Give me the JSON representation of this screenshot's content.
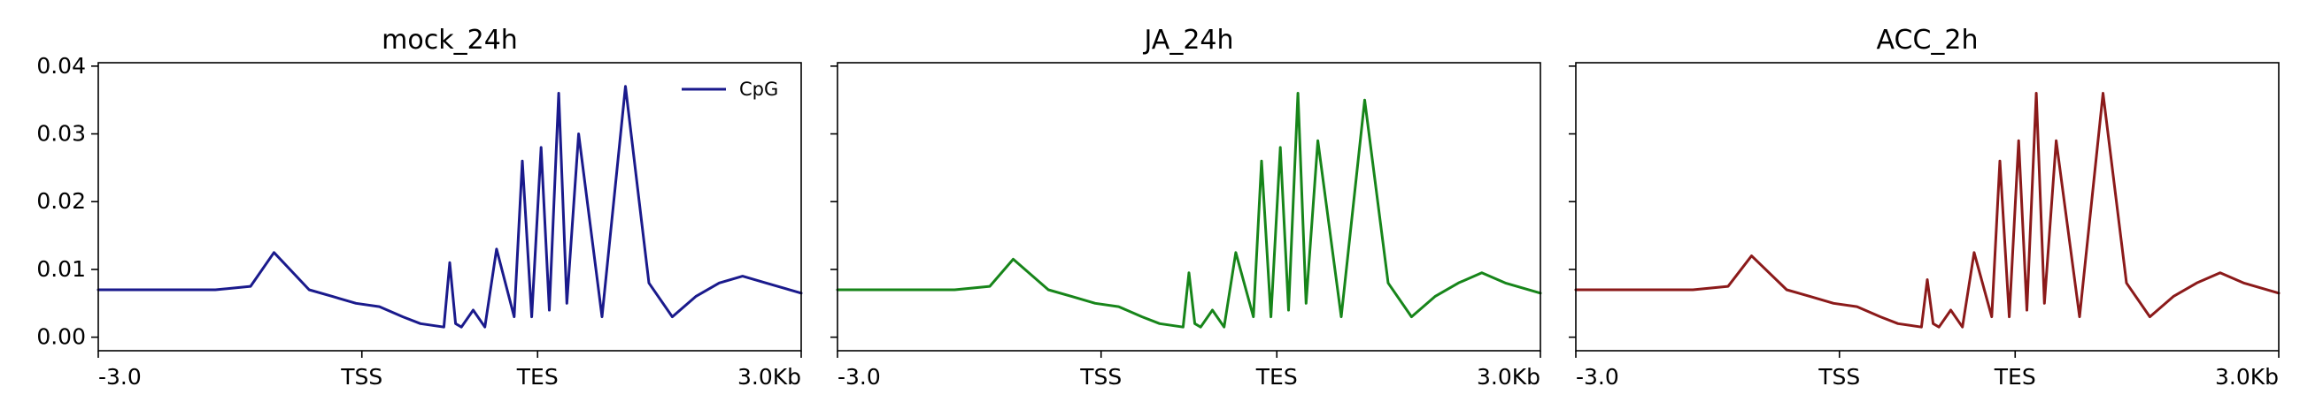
{
  "chart_data": [
    {
      "type": "line",
      "title": "mock_24h",
      "color": "#1a1a8c",
      "x_ticks": [
        "-3.0",
        "TSS",
        "TES",
        "3.0Kb"
      ],
      "y_ticks": [
        "0.00",
        "0.01",
        "0.02",
        "0.03",
        "0.04"
      ],
      "ylim": [
        -0.002,
        0.0405
      ],
      "show_y_tick_labels": true,
      "legend": {
        "label": "CpG",
        "placement": "top-right"
      },
      "series": [
        {
          "name": "CpG",
          "x": [
            -3.0,
            -2.5,
            -2.0,
            -1.7,
            -1.5,
            -1.2,
            -1.0,
            -0.8,
            -0.6,
            -0.4,
            -0.25,
            -0.05,
            0.0,
            0.05,
            0.1,
            0.2,
            0.3,
            0.4,
            0.55,
            0.62,
            0.7,
            0.78,
            0.85,
            0.93,
            1.0,
            1.1,
            1.3,
            1.5,
            1.7,
            1.9,
            2.1,
            2.3,
            2.5,
            2.7,
            3.0
          ],
          "y": [
            0.007,
            0.007,
            0.007,
            0.0075,
            0.0125,
            0.007,
            0.006,
            0.005,
            0.0045,
            0.003,
            0.002,
            0.0015,
            0.011,
            0.002,
            0.0015,
            0.004,
            0.0015,
            0.013,
            0.003,
            0.026,
            0.003,
            0.028,
            0.004,
            0.036,
            0.005,
            0.03,
            0.003,
            0.037,
            0.008,
            0.003,
            0.006,
            0.008,
            0.009,
            0.008,
            0.0065
          ]
        }
      ]
    },
    {
      "type": "line",
      "title": "JA_24h",
      "color": "#17851a",
      "x_ticks": [
        "-3.0",
        "TSS",
        "TES",
        "3.0Kb"
      ],
      "y_ticks": [
        "0.00",
        "0.01",
        "0.02",
        "0.03",
        "0.04"
      ],
      "ylim": [
        -0.002,
        0.0405
      ],
      "show_y_tick_labels": false,
      "series": [
        {
          "x": [
            -3.0,
            -2.5,
            -2.0,
            -1.7,
            -1.5,
            -1.2,
            -1.0,
            -0.8,
            -0.6,
            -0.4,
            -0.25,
            -0.05,
            0.0,
            0.05,
            0.1,
            0.2,
            0.3,
            0.4,
            0.55,
            0.62,
            0.7,
            0.78,
            0.85,
            0.93,
            1.0,
            1.1,
            1.3,
            1.5,
            1.7,
            1.9,
            2.1,
            2.3,
            2.5,
            2.7,
            3.0
          ],
          "y": [
            0.007,
            0.007,
            0.007,
            0.0075,
            0.0115,
            0.007,
            0.006,
            0.005,
            0.0045,
            0.003,
            0.002,
            0.0015,
            0.0095,
            0.002,
            0.0015,
            0.004,
            0.0015,
            0.0125,
            0.003,
            0.026,
            0.003,
            0.028,
            0.004,
            0.036,
            0.005,
            0.029,
            0.003,
            0.035,
            0.008,
            0.003,
            0.006,
            0.008,
            0.0095,
            0.008,
            0.0065
          ]
        }
      ]
    },
    {
      "type": "line",
      "title": "ACC_2h",
      "color": "#8b1a1a",
      "x_ticks": [
        "-3.0",
        "TSS",
        "TES",
        "3.0Kb"
      ],
      "y_ticks": [
        "0.00",
        "0.01",
        "0.02",
        "0.03",
        "0.04"
      ],
      "ylim": [
        -0.002,
        0.0405
      ],
      "show_y_tick_labels": false,
      "series": [
        {
          "x": [
            -3.0,
            -2.5,
            -2.0,
            -1.7,
            -1.5,
            -1.2,
            -1.0,
            -0.8,
            -0.6,
            -0.4,
            -0.25,
            -0.05,
            0.0,
            0.05,
            0.1,
            0.2,
            0.3,
            0.4,
            0.55,
            0.62,
            0.7,
            0.78,
            0.85,
            0.93,
            1.0,
            1.1,
            1.3,
            1.5,
            1.7,
            1.9,
            2.1,
            2.3,
            2.5,
            2.7,
            3.0
          ],
          "y": [
            0.007,
            0.007,
            0.007,
            0.0075,
            0.012,
            0.007,
            0.006,
            0.005,
            0.0045,
            0.003,
            0.002,
            0.0015,
            0.0085,
            0.002,
            0.0015,
            0.004,
            0.0015,
            0.0125,
            0.003,
            0.026,
            0.003,
            0.029,
            0.004,
            0.036,
            0.005,
            0.029,
            0.003,
            0.036,
            0.008,
            0.003,
            0.006,
            0.008,
            0.0095,
            0.008,
            0.0065
          ]
        }
      ]
    }
  ]
}
